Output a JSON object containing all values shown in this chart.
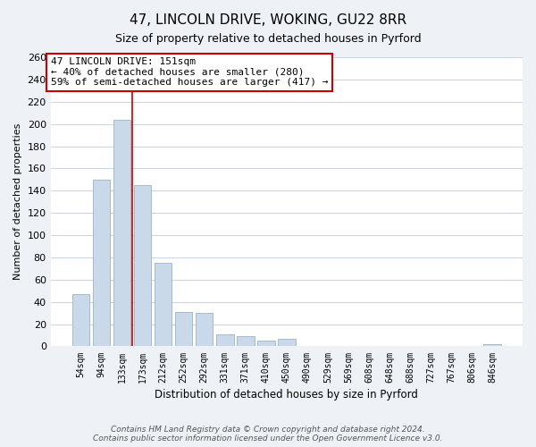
{
  "title": "47, LINCOLN DRIVE, WOKING, GU22 8RR",
  "subtitle": "Size of property relative to detached houses in Pyrford",
  "xlabel": "Distribution of detached houses by size in Pyrford",
  "ylabel": "Number of detached properties",
  "bar_color": "#c9d9ea",
  "bar_edge_color": "#9ab4cc",
  "categories": [
    "54sqm",
    "94sqm",
    "133sqm",
    "173sqm",
    "212sqm",
    "252sqm",
    "292sqm",
    "331sqm",
    "371sqm",
    "410sqm",
    "450sqm",
    "490sqm",
    "529sqm",
    "569sqm",
    "608sqm",
    "648sqm",
    "688sqm",
    "727sqm",
    "767sqm",
    "806sqm",
    "846sqm"
  ],
  "values": [
    47,
    150,
    204,
    145,
    75,
    31,
    30,
    11,
    9,
    5,
    7,
    0,
    0,
    0,
    0,
    0,
    0,
    0,
    0,
    0,
    2
  ],
  "ylim": [
    0,
    260
  ],
  "yticks": [
    0,
    20,
    40,
    60,
    80,
    100,
    120,
    140,
    160,
    180,
    200,
    220,
    240,
    260
  ],
  "vline_x": 2.5,
  "vline_color": "#cc0000",
  "annotation_title": "47 LINCOLN DRIVE: 151sqm",
  "annotation_line1": "← 40% of detached houses are smaller (280)",
  "annotation_line2": "59% of semi-detached houses are larger (417) →",
  "annotation_box_color": "#ffffff",
  "annotation_box_edge": "#cc0000",
  "footer_line1": "Contains HM Land Registry data © Crown copyright and database right 2024.",
  "footer_line2": "Contains public sector information licensed under the Open Government Licence v3.0.",
  "bg_color": "#eef2f7",
  "plot_bg_color": "#ffffff",
  "grid_color": "#c8d4e4"
}
